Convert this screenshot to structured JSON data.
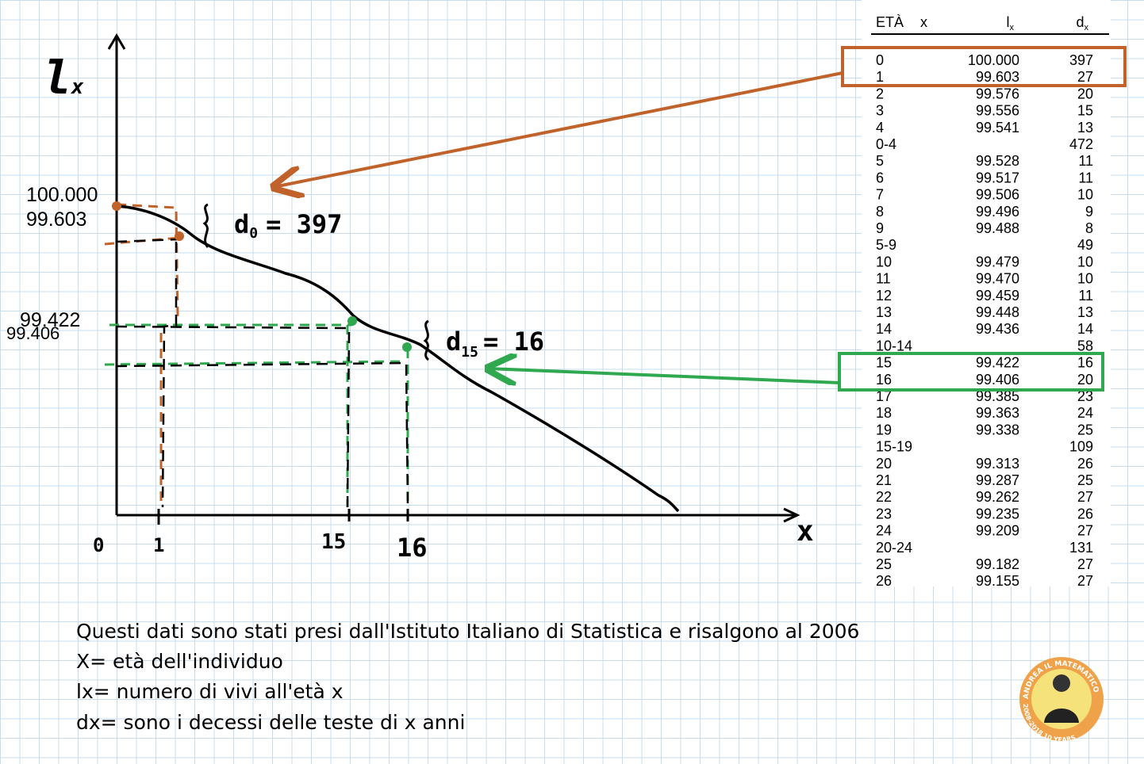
{
  "diagram": {
    "y_axis_label": {
      "base": "l",
      "sub": "x"
    },
    "x_axis_label": "x",
    "x_ticks": [
      "0",
      "1",
      "15",
      "16"
    ],
    "y_ticks": [
      "100.000",
      "99.603",
      "99.422",
      "99.406"
    ],
    "annotations": [
      {
        "base": "d",
        "sub": "0",
        "rest": "= 397"
      },
      {
        "base": "d",
        "sub": "15",
        "rest": "= 16"
      }
    ]
  },
  "table": {
    "header": {
      "age": "ETÀ",
      "age_var": "x",
      "lx": {
        "base": "l",
        "sub": "x"
      },
      "dx": {
        "base": "d",
        "sub": "x"
      }
    },
    "rows": [
      {
        "age": "0",
        "lx": "100.000",
        "dx": "397"
      },
      {
        "age": "1",
        "lx": "99.603",
        "dx": "27"
      },
      {
        "age": "2",
        "lx": "99.576",
        "dx": "20"
      },
      {
        "age": "3",
        "lx": "99.556",
        "dx": "15"
      },
      {
        "age": "4",
        "lx": "99.541",
        "dx": "13"
      },
      {
        "age": "0-4",
        "dx": "472"
      },
      {
        "age": "5",
        "lx": "99.528",
        "dx": "11"
      },
      {
        "age": "6",
        "lx": "99.517",
        "dx": "11"
      },
      {
        "age": "7",
        "lx": "99.506",
        "dx": "10"
      },
      {
        "age": "8",
        "lx": "99.496",
        "dx": "9"
      },
      {
        "age": "9",
        "lx": "99.488",
        "dx": "8"
      },
      {
        "age": "5-9",
        "dx": "49"
      },
      {
        "age": "10",
        "lx": "99.479",
        "dx": "10"
      },
      {
        "age": "11",
        "lx": "99.470",
        "dx": "10"
      },
      {
        "age": "12",
        "lx": "99.459",
        "dx": "11"
      },
      {
        "age": "13",
        "lx": "99.448",
        "dx": "13"
      },
      {
        "age": "14",
        "lx": "99.436",
        "dx": "14"
      },
      {
        "age": "10-14",
        "dx": "58"
      },
      {
        "age": "15",
        "lx": "99.422",
        "dx": "16"
      },
      {
        "age": "16",
        "lx": "99.406",
        "dx": "20"
      },
      {
        "age": "17",
        "lx": "99.385",
        "dx": "23"
      },
      {
        "age": "18",
        "lx": "99.363",
        "dx": "24"
      },
      {
        "age": "19",
        "lx": "99.338",
        "dx": "25"
      },
      {
        "age": "15-19",
        "dx": "109"
      },
      {
        "age": "20",
        "lx": "99.313",
        "dx": "26"
      },
      {
        "age": "21",
        "lx": "99.287",
        "dx": "25"
      },
      {
        "age": "22",
        "lx": "99.262",
        "dx": "27"
      },
      {
        "age": "23",
        "lx": "99.235",
        "dx": "26"
      },
      {
        "age": "24",
        "lx": "99.209",
        "dx": "27"
      },
      {
        "age": "20-24",
        "dx": "131"
      },
      {
        "age": "25",
        "lx": "99.182",
        "dx": "27"
      },
      {
        "age": "26",
        "lx": "99.155",
        "dx": "27"
      }
    ]
  },
  "notes": [
    "Questi dati sono stati presi dall'Istituto Italiano di Statistica e risalgono al 2006",
    "X= età dell'individuo",
    "lx= numero di vivi all'età x",
    "dx= sono i decessi delle teste di x anni"
  ],
  "logo": {
    "top": "ANDREA IL MATEMATICO",
    "bottom": "2008-2018 10 YEARS"
  }
}
